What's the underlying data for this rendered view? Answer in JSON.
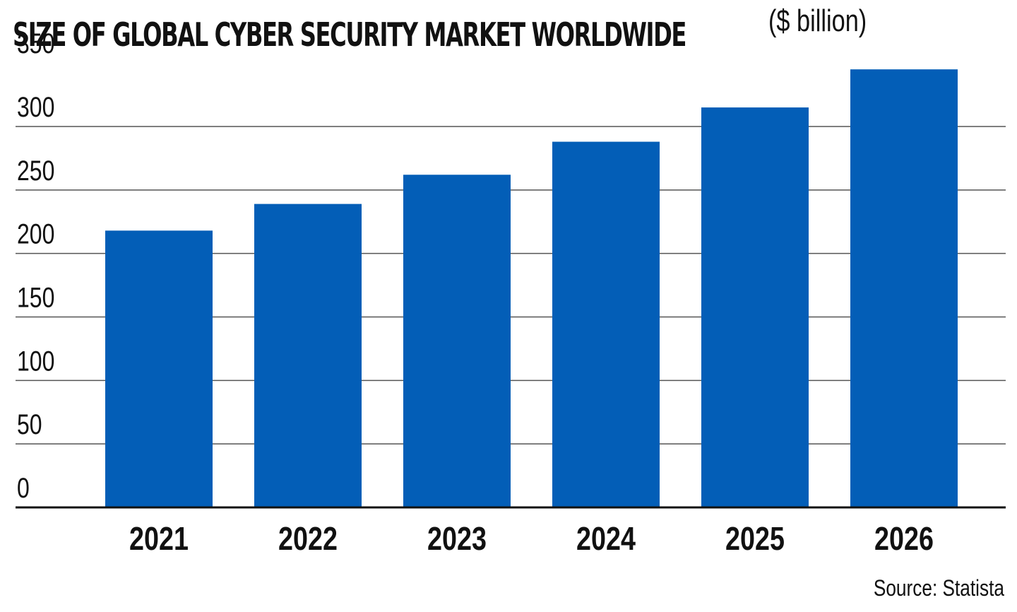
{
  "chart_data": {
    "type": "bar",
    "title": "SIZE OF GLOBAL CYBER SECURITY MARKET WORLDWIDE",
    "subtitle": "($ billion)",
    "categories": [
      "2021",
      "2022",
      "2023",
      "2024",
      "2025",
      "2026"
    ],
    "values": [
      218,
      239,
      262,
      288,
      315,
      345
    ],
    "xlabel": "",
    "ylabel": "",
    "ylim": [
      0,
      350
    ],
    "y_ticks": [
      "0",
      "50",
      "100",
      "150",
      "200",
      "250",
      "300",
      "350"
    ],
    "grid": "horizontal",
    "legend": "none",
    "source": "Source: Statista",
    "colors": {
      "bar": "#035EB7",
      "grid": "#555555",
      "baseline": "#111111"
    }
  }
}
